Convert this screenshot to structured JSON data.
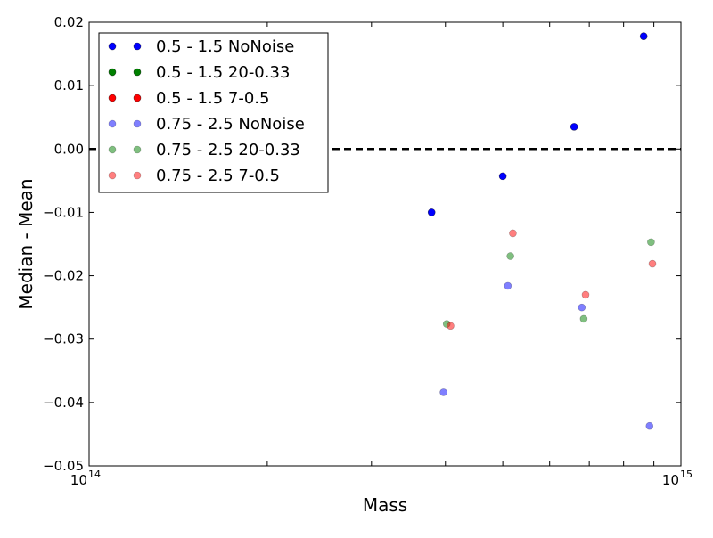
{
  "chart_data": {
    "type": "scatter",
    "xlabel": "Mass",
    "ylabel": "Median - Mean",
    "xscale": "log",
    "xlim": [
      100000000000000.0,
      1000000000000000.0
    ],
    "ylim": [
      -0.05,
      0.02
    ],
    "grid": false,
    "legend_position": "top-left",
    "x_ticks": [
      {
        "value": 100000000000000.0,
        "base": "10",
        "exp": "14"
      },
      {
        "value": 1000000000000000.0,
        "base": "10",
        "exp": "15"
      }
    ],
    "y_ticks": [
      {
        "value": 0.02,
        "label": "0.02"
      },
      {
        "value": 0.01,
        "label": "0.01"
      },
      {
        "value": 0.0,
        "label": "0.00"
      },
      {
        "value": -0.01,
        "label": "−0.01"
      },
      {
        "value": -0.02,
        "label": "−0.02"
      },
      {
        "value": -0.03,
        "label": "−0.03"
      },
      {
        "value": -0.04,
        "label": "−0.04"
      },
      {
        "value": -0.05,
        "label": "−0.05"
      }
    ],
    "reference_line": {
      "y": 0.0,
      "style": "dashed",
      "color": "#000000"
    },
    "series": [
      {
        "name": "0.5 - 1.5 NoNoise",
        "color": "#0000ff",
        "alpha": 1.0,
        "points": [
          [
            379000000000000.0,
            -0.01
          ],
          [
            500000000000000.0,
            -0.0043
          ],
          [
            660000000000000.0,
            0.0035
          ],
          [
            865000000000000.0,
            0.0178
          ]
        ]
      },
      {
        "name": "0.5 - 1.5 20-0.33",
        "color": "#008000",
        "alpha": 1.0,
        "points": []
      },
      {
        "name": "0.5 - 1.5 7-0.5",
        "color": "#ff0000",
        "alpha": 1.0,
        "points": []
      },
      {
        "name": "0.75 - 2.5 NoNoise",
        "color": "#0000ff",
        "alpha": 0.5,
        "points": [
          [
            397000000000000.0,
            -0.0384
          ],
          [
            510000000000000.0,
            -0.0216
          ],
          [
            680000000000000.0,
            -0.025
          ],
          [
            885000000000000.0,
            -0.0437
          ]
        ]
      },
      {
        "name": "0.75 - 2.5 20-0.33",
        "color": "#008000",
        "alpha": 0.5,
        "points": [
          [
            402000000000000.0,
            -0.0276
          ],
          [
            515000000000000.0,
            -0.0169
          ],
          [
            685000000000000.0,
            -0.0268
          ],
          [
            890000000000000.0,
            -0.0147
          ]
        ]
      },
      {
        "name": "0.75 - 2.5 7-0.5",
        "color": "#ff0000",
        "alpha": 0.5,
        "points": [
          [
            408000000000000.0,
            -0.0279
          ],
          [
            520000000000000.0,
            -0.0133
          ],
          [
            690000000000000.0,
            -0.023
          ],
          [
            895000000000000.0,
            -0.0181
          ]
        ]
      }
    ]
  }
}
